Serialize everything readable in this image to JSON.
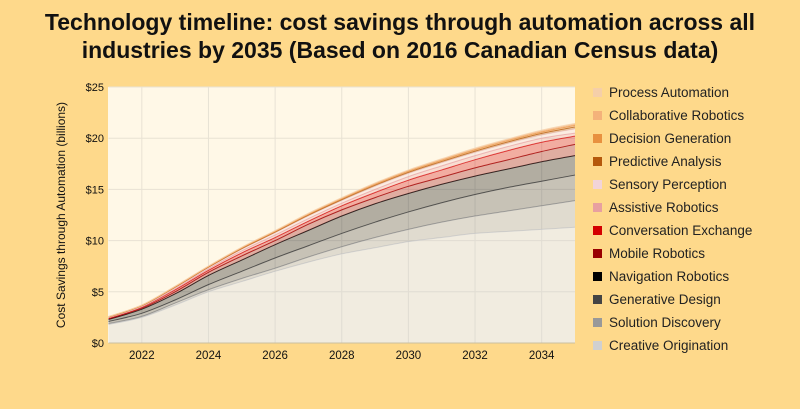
{
  "chart_data": {
    "type": "area",
    "stacked": true,
    "title": "Technology timeline: cost savings through automation across all industries by 2035 (Based on 2016 Canadian Census data)",
    "title_lines": [
      "Technology timeline: cost savings through automation across all",
      "industries by 2035 (Based on 2016 Canadian Census data)"
    ],
    "xlabel": "",
    "ylabel": "Cost Savings through Automation (billions)",
    "xlim": [
      2021,
      2035
    ],
    "ylim": [
      0,
      25
    ],
    "x_ticks": [
      "2022",
      "2024",
      "2026",
      "2028",
      "2030",
      "2032",
      "2034"
    ],
    "y_ticks": [
      "$0",
      "$5",
      "$10",
      "$15",
      "$20",
      "$25"
    ],
    "grid": true,
    "legend_position": "right",
    "x": [
      2021,
      2022,
      2023,
      2024,
      2025,
      2026,
      2027,
      2028,
      2029,
      2030,
      2031,
      2032,
      2033,
      2034,
      2035
    ],
    "series": [
      {
        "name": "Creative Origination",
        "color": "#d0d0d0",
        "values": [
          1.8,
          2.5,
          3.7,
          5.0,
          6.0,
          7.0,
          7.9,
          8.7,
          9.3,
          9.9,
          10.3,
          10.7,
          10.9,
          11.1,
          11.3
        ]
      },
      {
        "name": "Solution Discovery",
        "color": "#999999",
        "values": [
          0.1,
          0.1,
          0.2,
          0.2,
          0.3,
          0.3,
          0.5,
          0.7,
          1.0,
          1.2,
          1.5,
          1.7,
          2.0,
          2.3,
          2.6
        ]
      },
      {
        "name": "Generative Design",
        "color": "#444444",
        "values": [
          0.2,
          0.3,
          0.3,
          0.5,
          0.7,
          1.0,
          1.1,
          1.3,
          1.5,
          1.7,
          1.9,
          2.1,
          2.3,
          2.4,
          2.5
        ]
      },
      {
        "name": "Navigation Robotics",
        "color": "#000000",
        "values": [
          0.2,
          0.4,
          0.6,
          0.9,
          1.1,
          1.3,
          1.5,
          1.7,
          1.8,
          1.8,
          1.8,
          1.8,
          1.8,
          1.9,
          1.9
        ]
      },
      {
        "name": "Mobile Robotics",
        "color": "#990000",
        "values": [
          0.05,
          0.1,
          0.2,
          0.3,
          0.4,
          0.4,
          0.6,
          0.6,
          0.6,
          0.7,
          0.7,
          0.8,
          0.9,
          1.0,
          1.1
        ]
      },
      {
        "name": "Conversation Exchange",
        "color": "#d40000",
        "values": [
          0.05,
          0.1,
          0.2,
          0.2,
          0.3,
          0.3,
          0.3,
          0.4,
          0.5,
          0.6,
          0.7,
          0.8,
          0.9,
          0.9,
          0.8
        ]
      },
      {
        "name": "Assistive Robotics",
        "color": "#e8a0a0",
        "values": [
          0.05,
          0.05,
          0.1,
          0.15,
          0.2,
          0.25,
          0.25,
          0.25,
          0.3,
          0.35,
          0.4,
          0.4,
          0.4,
          0.4,
          0.3
        ]
      },
      {
        "name": "Sensory Perception",
        "color": "#f2d4d8",
        "values": [
          0.05,
          0.05,
          0.1,
          0.1,
          0.15,
          0.2,
          0.25,
          0.25,
          0.3,
          0.3,
          0.3,
          0.3,
          0.3,
          0.3,
          0.4
        ]
      },
      {
        "name": "Predictive Analysis",
        "color": "#b5590c",
        "values": [
          0.03,
          0.04,
          0.05,
          0.06,
          0.07,
          0.08,
          0.09,
          0.1,
          0.11,
          0.12,
          0.13,
          0.14,
          0.15,
          0.17,
          0.2
        ]
      },
      {
        "name": "Decision Generation",
        "color": "#e8913f",
        "values": [
          0.02,
          0.03,
          0.04,
          0.05,
          0.06,
          0.07,
          0.08,
          0.09,
          0.1,
          0.11,
          0.12,
          0.13,
          0.13,
          0.14,
          0.15
        ]
      },
      {
        "name": "Collaborative Robotics",
        "color": "#f4b27a",
        "values": [
          0.02,
          0.02,
          0.03,
          0.03,
          0.04,
          0.04,
          0.05,
          0.05,
          0.06,
          0.06,
          0.07,
          0.08,
          0.08,
          0.09,
          0.1
        ]
      },
      {
        "name": "Process Automation",
        "color": "#f5cfa9",
        "values": [
          0.02,
          0.02,
          0.03,
          0.03,
          0.04,
          0.04,
          0.05,
          0.05,
          0.06,
          0.06,
          0.07,
          0.08,
          0.08,
          0.09,
          0.1
        ]
      }
    ],
    "legend_order": [
      "Process Automation",
      "Collaborative Robotics",
      "Decision Generation",
      "Predictive Analysis",
      "Sensory Perception",
      "Assistive Robotics",
      "Conversation Exchange",
      "Mobile Robotics",
      "Navigation Robotics",
      "Generative Design",
      "Solution Discovery",
      "Creative Origination"
    ]
  },
  "colors": {
    "page_background": "#fed98b",
    "plot_background": "#fff8e7",
    "grid": "#e8e2d4"
  }
}
